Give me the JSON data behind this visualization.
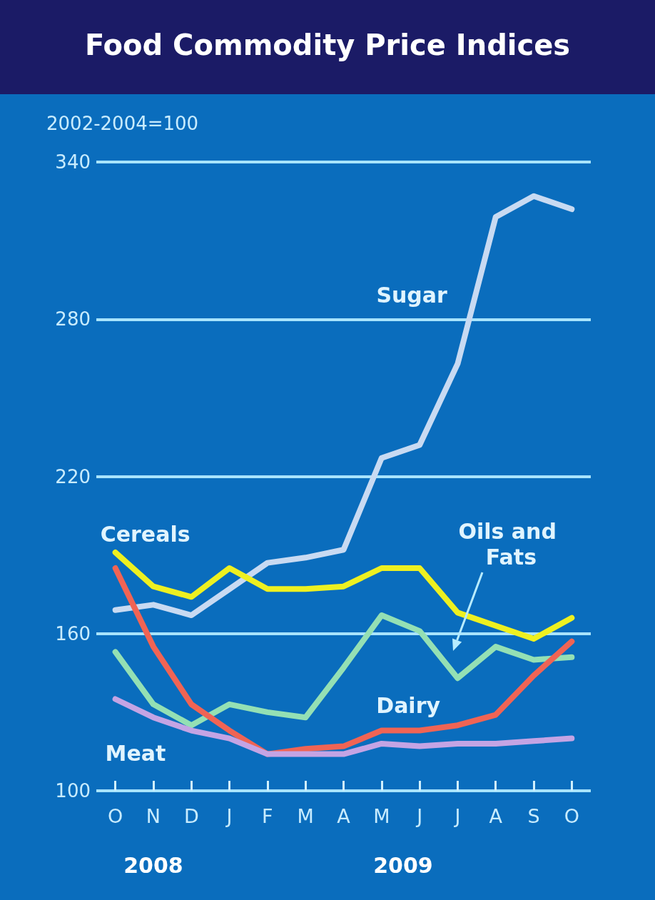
{
  "chart_data": {
    "type": "line",
    "title": "Food Commodity Price Indices",
    "ylabel": "2002-2004=100",
    "categories": [
      "O",
      "N",
      "D",
      "J",
      "F",
      "M",
      "A",
      "M",
      "J",
      "J",
      "A",
      "S",
      "O"
    ],
    "series": [
      {
        "name": "Sugar",
        "color": "#c8daf2",
        "values": [
          169,
          171,
          167,
          177,
          187,
          189,
          192,
          227,
          232,
          263,
          319,
          327,
          322
        ]
      },
      {
        "name": "Cereals",
        "color": "#eef020",
        "values": [
          191,
          178,
          174,
          185,
          177,
          177,
          178,
          185,
          185,
          168,
          163,
          158,
          166
        ]
      },
      {
        "name": "Oils and Fats",
        "color": "#94e0b4",
        "values": [
          153,
          133,
          125,
          133,
          130,
          128,
          147,
          167,
          161,
          143,
          155,
          150,
          151
        ]
      },
      {
        "name": "Dairy",
        "color": "#f06454",
        "values": [
          185,
          155,
          133,
          123,
          114,
          116,
          117,
          123,
          123,
          125,
          129,
          144,
          157
        ]
      },
      {
        "name": "Meat",
        "color": "#c4a4e4",
        "values": [
          135,
          128,
          123,
          120,
          114,
          114,
          114,
          118,
          117,
          118,
          118,
          119,
          120
        ]
      }
    ],
    "ylim": [
      100,
      340
    ],
    "yticks": [
      100,
      160,
      220,
      280,
      340
    ],
    "grid": "y",
    "legend": false,
    "marker": "none",
    "line_style": "solid",
    "annotations": [
      "2008",
      "2009"
    ]
  }
}
